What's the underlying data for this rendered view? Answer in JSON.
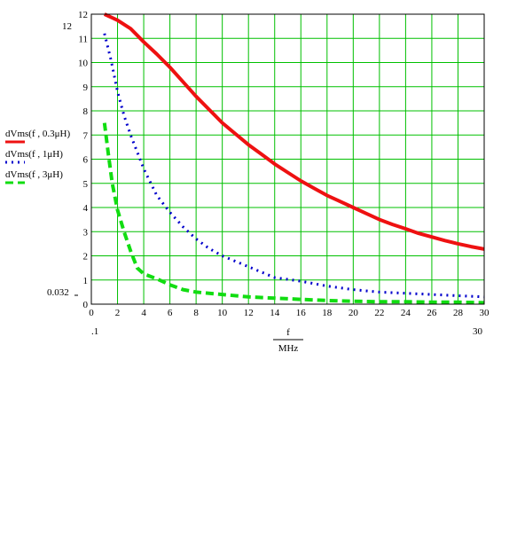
{
  "chart_data": {
    "type": "line",
    "xlabel_num": "f",
    "xlabel_den": "MHz",
    "xlim": [
      0,
      30
    ],
    "ylim": [
      0,
      12
    ],
    "x_ticks": [
      0,
      2,
      4,
      6,
      8,
      10,
      12,
      14,
      16,
      18,
      20,
      22,
      24,
      26,
      28,
      30
    ],
    "y_ticks": [
      0,
      1,
      2,
      3,
      4,
      5,
      6,
      7,
      8,
      9,
      10,
      11,
      12
    ],
    "x_min_marker": ".1",
    "x_max_marker": "30",
    "y_min_marker": "0.032",
    "y_max_marker": "12",
    "grid": true,
    "grid_color": "#00c000",
    "series": [
      {
        "name": "dVms(f , 0.3μH)",
        "color": "#ee1111",
        "style": "solid",
        "x": [
          1,
          2,
          3,
          4,
          5,
          6,
          7,
          8,
          9,
          10,
          11,
          12,
          13,
          14,
          15,
          16,
          17,
          18,
          19,
          20,
          21,
          22,
          23,
          24,
          25,
          26,
          27,
          28,
          29,
          30
        ],
        "y": [
          12.0,
          11.75,
          11.4,
          10.85,
          10.35,
          9.8,
          9.2,
          8.6,
          8.05,
          7.5,
          7.05,
          6.6,
          6.2,
          5.8,
          5.45,
          5.1,
          4.8,
          4.5,
          4.25,
          4.0,
          3.75,
          3.5,
          3.3,
          3.12,
          2.93,
          2.78,
          2.63,
          2.5,
          2.38,
          2.28
        ]
      },
      {
        "name": "dVms(f , 1μH)",
        "color": "#0000cc",
        "style": "dotted",
        "x": [
          1,
          1.5,
          2,
          2.5,
          3,
          3.5,
          4,
          5,
          6,
          7,
          8,
          9,
          10,
          12,
          14,
          16,
          18,
          20,
          22,
          24,
          26,
          28,
          30
        ],
        "y": [
          11.2,
          10.1,
          8.8,
          7.8,
          7.0,
          6.3,
          5.6,
          4.5,
          3.8,
          3.2,
          2.7,
          2.3,
          2.0,
          1.55,
          1.1,
          0.95,
          0.75,
          0.6,
          0.5,
          0.45,
          0.4,
          0.35,
          0.3
        ]
      },
      {
        "name": "dVms(f , 3μH)",
        "color": "#11dd11",
        "style": "dashed",
        "x": [
          1,
          1.3,
          1.6,
          2,
          2.5,
          3,
          3.5,
          4,
          5,
          6,
          7,
          8,
          10,
          12,
          14,
          16,
          18,
          20,
          22,
          24,
          26,
          28,
          30
        ],
        "y": [
          7.5,
          6.2,
          5.0,
          3.9,
          3.0,
          2.2,
          1.5,
          1.25,
          1.05,
          0.8,
          0.6,
          0.5,
          0.4,
          0.3,
          0.25,
          0.2,
          0.15,
          0.12,
          0.1,
          0.1,
          0.08,
          0.08,
          0.06
        ]
      }
    ]
  }
}
